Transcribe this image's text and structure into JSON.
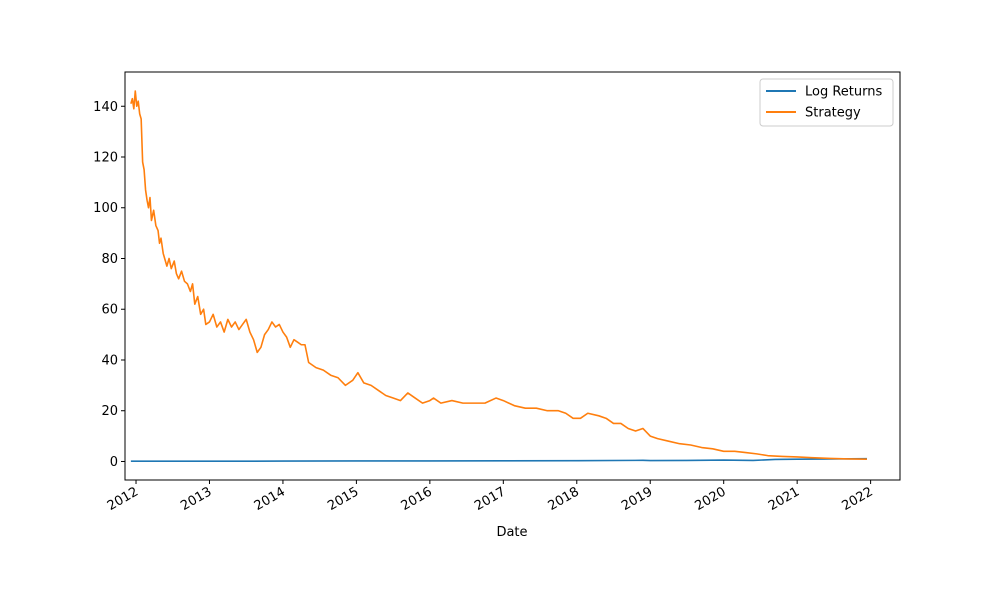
{
  "chart_data": {
    "type": "line",
    "title": "",
    "xlabel": "Date",
    "ylabel": "",
    "xlim": [
      2011.85,
      2022.4
    ],
    "ylim": [
      -7.3,
      153.5
    ],
    "x_ticks": [
      {
        "value": 2012,
        "label": "2012"
      },
      {
        "value": 2013,
        "label": "2013"
      },
      {
        "value": 2014,
        "label": "2014"
      },
      {
        "value": 2015,
        "label": "2015"
      },
      {
        "value": 2016,
        "label": "2016"
      },
      {
        "value": 2017,
        "label": "2017"
      },
      {
        "value": 2018,
        "label": "2018"
      },
      {
        "value": 2019,
        "label": "2019"
      },
      {
        "value": 2020,
        "label": "2020"
      },
      {
        "value": 2021,
        "label": "2021"
      },
      {
        "value": 2022,
        "label": "2022"
      }
    ],
    "y_ticks": [
      {
        "value": 0,
        "label": "0"
      },
      {
        "value": 20,
        "label": "20"
      },
      {
        "value": 40,
        "label": "40"
      },
      {
        "value": 60,
        "label": "60"
      },
      {
        "value": 80,
        "label": "80"
      },
      {
        "value": 100,
        "label": "100"
      },
      {
        "value": 120,
        "label": "120"
      },
      {
        "value": 140,
        "label": "140"
      }
    ],
    "grid": false,
    "legend_position": "top-right",
    "series": [
      {
        "name": "Log Returns",
        "color": "#1f77b4",
        "points": [
          [
            2011.93,
            0.1
          ],
          [
            2013.0,
            0.1
          ],
          [
            2014.0,
            0.15
          ],
          [
            2015.0,
            0.2
          ],
          [
            2016.0,
            0.2
          ],
          [
            2017.0,
            0.25
          ],
          [
            2018.0,
            0.3
          ],
          [
            2018.9,
            0.45
          ],
          [
            2019.0,
            0.35
          ],
          [
            2019.5,
            0.4
          ],
          [
            2020.0,
            0.55
          ],
          [
            2020.4,
            0.4
          ],
          [
            2020.7,
            0.8
          ],
          [
            2021.0,
            0.9
          ],
          [
            2021.5,
            1.0
          ],
          [
            2021.95,
            1.1
          ]
        ]
      },
      {
        "name": "Strategy",
        "color": "#ff7f0e",
        "points": [
          [
            2011.93,
            141
          ],
          [
            2011.95,
            143
          ],
          [
            2011.97,
            139
          ],
          [
            2011.99,
            146
          ],
          [
            2012.01,
            140
          ],
          [
            2012.03,
            142
          ],
          [
            2012.05,
            137
          ],
          [
            2012.07,
            135
          ],
          [
            2012.09,
            118
          ],
          [
            2012.11,
            115
          ],
          [
            2012.13,
            107
          ],
          [
            2012.15,
            103
          ],
          [
            2012.17,
            100
          ],
          [
            2012.19,
            104
          ],
          [
            2012.21,
            95
          ],
          [
            2012.24,
            99
          ],
          [
            2012.27,
            93
          ],
          [
            2012.3,
            91
          ],
          [
            2012.32,
            86
          ],
          [
            2012.34,
            88
          ],
          [
            2012.37,
            82
          ],
          [
            2012.4,
            79
          ],
          [
            2012.42,
            77
          ],
          [
            2012.45,
            80
          ],
          [
            2012.48,
            76
          ],
          [
            2012.52,
            79
          ],
          [
            2012.55,
            74
          ],
          [
            2012.58,
            72
          ],
          [
            2012.62,
            75
          ],
          [
            2012.66,
            71
          ],
          [
            2012.7,
            70
          ],
          [
            2012.74,
            67
          ],
          [
            2012.77,
            70
          ],
          [
            2012.8,
            62
          ],
          [
            2012.84,
            65
          ],
          [
            2012.88,
            58
          ],
          [
            2012.92,
            60
          ],
          [
            2012.95,
            54
          ],
          [
            2013.0,
            55
          ],
          [
            2013.05,
            58
          ],
          [
            2013.1,
            53
          ],
          [
            2013.15,
            55
          ],
          [
            2013.2,
            51
          ],
          [
            2013.25,
            56
          ],
          [
            2013.3,
            53
          ],
          [
            2013.35,
            55
          ],
          [
            2013.4,
            52
          ],
          [
            2013.45,
            54
          ],
          [
            2013.5,
            56
          ],
          [
            2013.55,
            51
          ],
          [
            2013.6,
            48
          ],
          [
            2013.65,
            43
          ],
          [
            2013.7,
            45
          ],
          [
            2013.75,
            50
          ],
          [
            2013.8,
            52
          ],
          [
            2013.85,
            55
          ],
          [
            2013.9,
            53
          ],
          [
            2013.95,
            54
          ],
          [
            2014.0,
            51
          ],
          [
            2014.05,
            49
          ],
          [
            2014.1,
            45
          ],
          [
            2014.15,
            48
          ],
          [
            2014.2,
            47
          ],
          [
            2014.25,
            46
          ],
          [
            2014.3,
            46
          ],
          [
            2014.35,
            39
          ],
          [
            2014.45,
            37
          ],
          [
            2014.55,
            36
          ],
          [
            2014.65,
            34
          ],
          [
            2014.75,
            33
          ],
          [
            2014.85,
            30
          ],
          [
            2014.95,
            32
          ],
          [
            2015.02,
            35
          ],
          [
            2015.1,
            31
          ],
          [
            2015.2,
            30
          ],
          [
            2015.3,
            28
          ],
          [
            2015.4,
            26
          ],
          [
            2015.5,
            25
          ],
          [
            2015.6,
            24
          ],
          [
            2015.7,
            27
          ],
          [
            2015.8,
            25
          ],
          [
            2015.9,
            23
          ],
          [
            2016.0,
            24
          ],
          [
            2016.05,
            25
          ],
          [
            2016.15,
            23
          ],
          [
            2016.3,
            24
          ],
          [
            2016.45,
            23
          ],
          [
            2016.6,
            23
          ],
          [
            2016.75,
            23
          ],
          [
            2016.9,
            25
          ],
          [
            2017.0,
            24
          ],
          [
            2017.15,
            22
          ],
          [
            2017.3,
            21
          ],
          [
            2017.45,
            21
          ],
          [
            2017.6,
            20
          ],
          [
            2017.75,
            20
          ],
          [
            2017.85,
            19
          ],
          [
            2017.95,
            17
          ],
          [
            2018.05,
            17
          ],
          [
            2018.15,
            19
          ],
          [
            2018.3,
            18
          ],
          [
            2018.4,
            17
          ],
          [
            2018.5,
            15
          ],
          [
            2018.6,
            15
          ],
          [
            2018.7,
            13
          ],
          [
            2018.8,
            12
          ],
          [
            2018.9,
            13
          ],
          [
            2019.0,
            10
          ],
          [
            2019.1,
            9
          ],
          [
            2019.25,
            8
          ],
          [
            2019.4,
            7
          ],
          [
            2019.55,
            6.5
          ],
          [
            2019.7,
            5.5
          ],
          [
            2019.85,
            5
          ],
          [
            2020.0,
            4
          ],
          [
            2020.15,
            4
          ],
          [
            2020.3,
            3.5
          ],
          [
            2020.45,
            3
          ],
          [
            2020.6,
            2.3
          ],
          [
            2020.8,
            2
          ],
          [
            2021.0,
            1.8
          ],
          [
            2021.2,
            1.5
          ],
          [
            2021.45,
            1.2
          ],
          [
            2021.7,
            1.0
          ],
          [
            2021.95,
            0.9
          ]
        ]
      }
    ]
  }
}
